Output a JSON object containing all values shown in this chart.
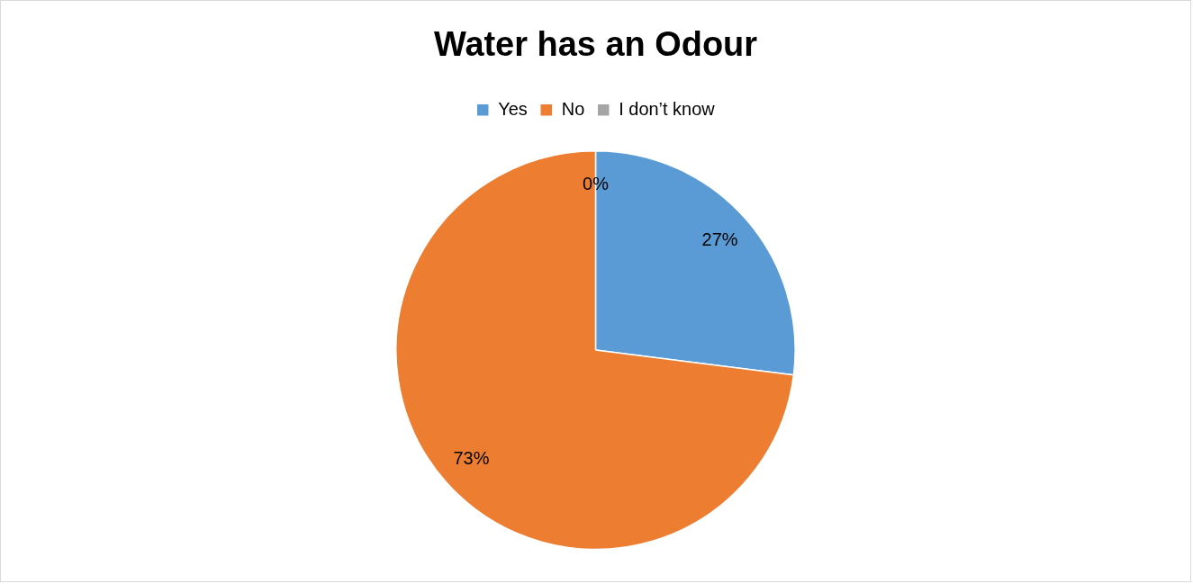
{
  "chart_data": {
    "type": "pie",
    "title": "Water has an Odour",
    "categories": [
      "Yes",
      "No",
      "I don’t know"
    ],
    "values": [
      27,
      73,
      0
    ],
    "colors": [
      "#5b9bd5",
      "#ed7d31",
      "#a5a5a5"
    ],
    "legend": "top",
    "value_labels": [
      "27%",
      "73%",
      "0%"
    ]
  }
}
